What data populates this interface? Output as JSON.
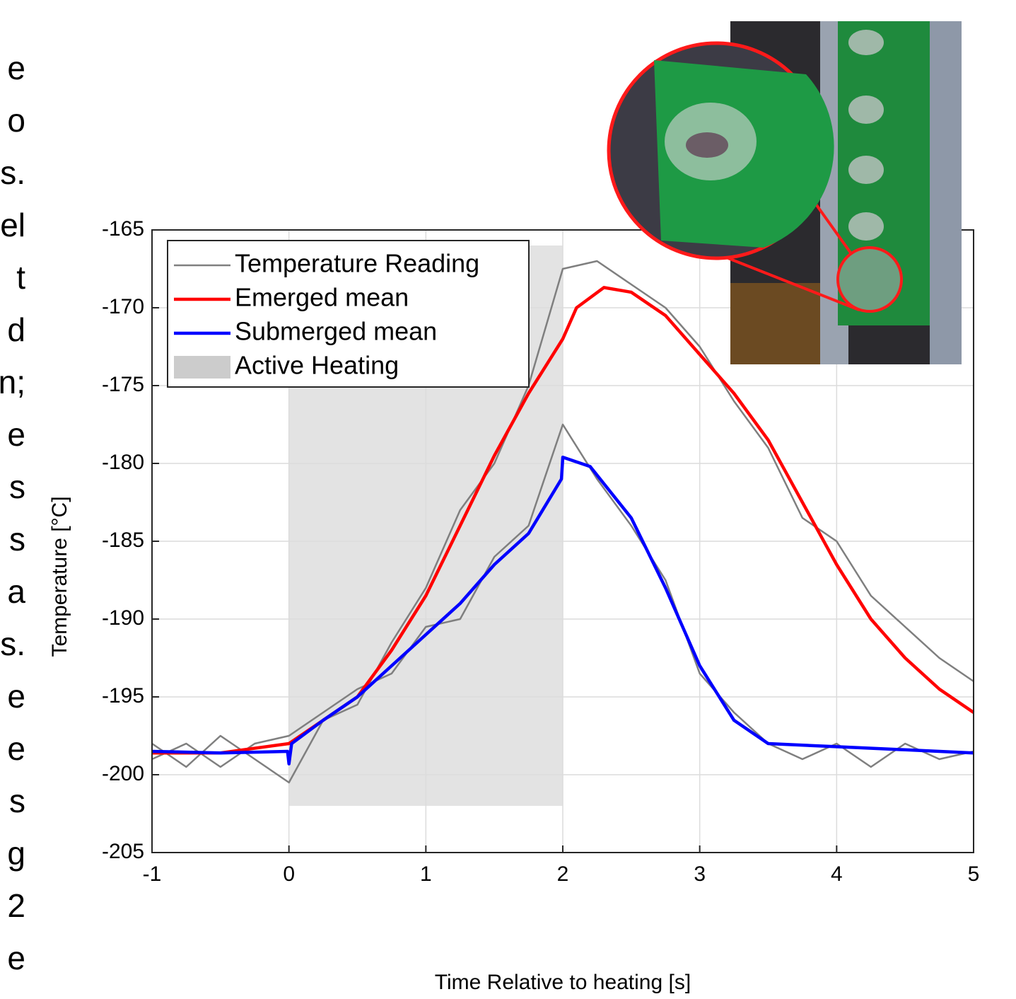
{
  "margin_text": [
    "e",
    "o",
    "s.",
    "el",
    "t",
    "d",
    "n;",
    "e",
    "s",
    "s",
    "a",
    "s.",
    "e",
    "e",
    "s",
    "g",
    "2",
    "e"
  ],
  "chart_data": {
    "type": "line",
    "xlabel": "Time Relative to heating [s]",
    "ylabel": "Temperature [°C]",
    "xlim": [
      -1,
      5
    ],
    "ylim": [
      -205,
      -165
    ],
    "xticks": [
      -1,
      0,
      1,
      2,
      3,
      4,
      5
    ],
    "yticks": [
      -165,
      -170,
      -175,
      -180,
      -185,
      -190,
      -195,
      -200,
      -205
    ],
    "grid": true,
    "legend": "upper left",
    "shade": {
      "name": "Active Heating",
      "color": "#e3e3e3",
      "x": [
        0,
        2
      ],
      "y": [
        -166,
        -202
      ]
    },
    "series": [
      {
        "name": "Temperature Reading",
        "color": "#7f7f7f",
        "x": [
          -1,
          -0.75,
          -0.5,
          -0.25,
          0,
          0.25,
          0.5,
          0.75,
          1,
          1.25,
          1.5,
          1.75,
          2,
          2.25,
          2.5,
          2.75,
          3,
          3.25,
          3.5,
          3.75,
          4,
          4.25,
          4.5,
          4.75,
          5
        ],
        "traces": [
          [
            -198,
            -199.5,
            -197.5,
            -199,
            -200.5,
            -196.5,
            -195.5,
            -191.5,
            -188,
            -183,
            -180,
            -175,
            -167.5,
            -167,
            -168.5,
            -170,
            -172.5,
            -176,
            -179,
            -183.5,
            -185,
            -188.5,
            -190.5,
            -192.5,
            -194
          ],
          [
            -199,
            -198,
            -199.5,
            -198,
            -197.5,
            -196,
            -194.5,
            -193.5,
            -190.5,
            -190,
            -186,
            -184,
            -177.5,
            -181,
            -184,
            -187.5,
            -193.5,
            -196,
            -198,
            -199,
            -198,
            -199.5,
            -198,
            -199,
            -198.5
          ]
        ]
      },
      {
        "name": "Emerged mean",
        "color": "#ff0000",
        "x": [
          -1,
          -0.5,
          0,
          0.25,
          0.5,
          0.75,
          1,
          1.25,
          1.5,
          1.75,
          2,
          2.1,
          2.3,
          2.5,
          2.75,
          3,
          3.25,
          3.5,
          3.75,
          4,
          4.25,
          4.5,
          4.75,
          5
        ],
        "values": [
          -198.6,
          -198.6,
          -198,
          -196.5,
          -195,
          -192,
          -188.5,
          -184,
          -179.5,
          -175.5,
          -172,
          -170,
          -168.7,
          -169,
          -170.5,
          -173,
          -175.5,
          -178.5,
          -182.5,
          -186.5,
          -190,
          -192.5,
          -194.5,
          -196
        ]
      },
      {
        "name": "Submerged mean",
        "color": "#0000ff",
        "x": [
          -1,
          -0.5,
          -0.01,
          0,
          0.02,
          0.25,
          0.5,
          0.75,
          1,
          1.25,
          1.5,
          1.75,
          1.99,
          2,
          2.2,
          2.5,
          2.75,
          3,
          3.25,
          3.5,
          4,
          4.5,
          5
        ],
        "values": [
          -198.5,
          -198.6,
          -198.5,
          -199.3,
          -198,
          -196.5,
          -195,
          -193,
          -191,
          -189,
          -186.5,
          -184.5,
          -181,
          -179.6,
          -180.2,
          -183.5,
          -188,
          -193,
          -196.5,
          -198,
          -198.2,
          -198.4,
          -198.6
        ]
      }
    ]
  }
}
